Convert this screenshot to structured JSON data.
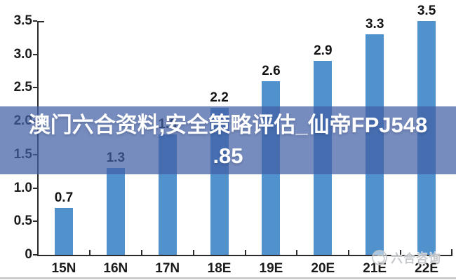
{
  "overlay": {
    "title_line1": "澳门六合资料,安全策略评估_仙帝FPJ548",
    "title_line2": ".85"
  },
  "watermark": {
    "text": "六合咨询"
  },
  "chart_data": {
    "type": "bar",
    "title": "",
    "xlabel": "",
    "ylabel": "",
    "categories": [
      "15N",
      "16N",
      "17N",
      "18E",
      "19E",
      "20E",
      "21E",
      "22E"
    ],
    "values": [
      0.7,
      1.3,
      1.8,
      2.2,
      2.6,
      2.9,
      3.3,
      3.5
    ],
    "data_labels": [
      "0.7",
      "1.3",
      "1.8",
      "2.2",
      "2.6",
      "2.9",
      "3.3",
      "3.5"
    ],
    "y_ticks": [
      "3.5",
      "3.0",
      "2.5",
      "2.0",
      "1.5",
      "1.0",
      "0.5",
      "0"
    ],
    "ylim": [
      0,
      3.5
    ],
    "grid": false,
    "legend": false,
    "bar_color": "#5191cc"
  },
  "colors": {
    "banner_overlay": "rgba(66,95,165,0.72)",
    "axis": "#2b2b2b",
    "divider": "#cbcbcb",
    "watermark_gray": "#c0c4c8"
  }
}
